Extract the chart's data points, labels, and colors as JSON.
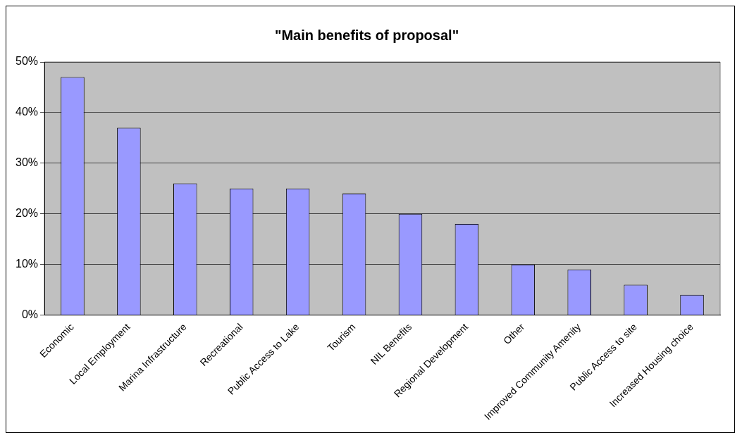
{
  "chart_data": {
    "type": "bar",
    "title": "\"Main benefits of proposal\"",
    "categories": [
      "Economic",
      "Local Employment",
      "Marina Infrastructure",
      "Recreational",
      "Public Access to Lake",
      "Tourism",
      "NIL Benefits",
      "Regional Development",
      "Other",
      "Improved Community Amenity",
      "Public Access to site",
      "Increased Housing choice"
    ],
    "values": [
      47,
      37,
      26,
      25,
      25,
      24,
      20,
      18,
      10,
      9,
      6,
      4
    ],
    "color": "#9999ff",
    "ylim": [
      0,
      50
    ],
    "yticks": [
      {
        "value": 0,
        "label": "0%"
      },
      {
        "value": 10,
        "label": "10%"
      },
      {
        "value": 20,
        "label": "20%"
      },
      {
        "value": 30,
        "label": "30%"
      },
      {
        "value": 40,
        "label": "40%"
      },
      {
        "value": 50,
        "label": "50%"
      }
    ],
    "grid": "y",
    "legend": false
  }
}
